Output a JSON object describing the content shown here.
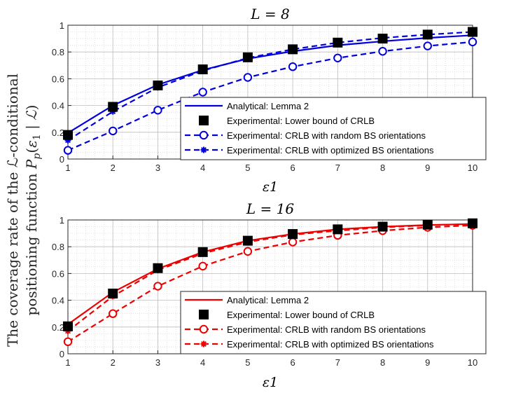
{
  "chart_data": [
    {
      "type": "line",
      "title": "L = 8",
      "xlabel": "ε1",
      "color": "#0000dd",
      "x": [
        1,
        2,
        3,
        4,
        5,
        6,
        7,
        8,
        9,
        10
      ],
      "xlim": [
        1,
        10
      ],
      "ylim": [
        0,
        1
      ],
      "xticks": [
        "1",
        "2",
        "3",
        "4",
        "5",
        "6",
        "7",
        "8",
        "9",
        "10"
      ],
      "yticks": [
        "0",
        "0.2",
        "0.4",
        "0.6",
        "0.8",
        "1"
      ],
      "grid": true,
      "legend_position": "bottom-right",
      "series": [
        {
          "name": "Analytical: Lemma 2",
          "style": "solid",
          "marker": "none",
          "values": [
            0.195,
            0.4,
            0.555,
            0.665,
            0.75,
            0.805,
            0.85,
            0.88,
            0.905,
            0.925
          ]
        },
        {
          "name": "Experimental: Lower bound of CRLB",
          "style": "none",
          "marker": "square",
          "values": [
            0.18,
            0.39,
            0.55,
            0.67,
            0.76,
            0.82,
            0.87,
            0.9,
            0.93,
            0.95
          ]
        },
        {
          "name": "Experimental: CRLB with random BS orientations",
          "style": "dashed",
          "marker": "circle",
          "values": [
            0.065,
            0.21,
            0.365,
            0.5,
            0.61,
            0.69,
            0.755,
            0.805,
            0.845,
            0.875
          ]
        },
        {
          "name": "Experimental: CRLB with optimized BS orientations",
          "style": "dashed",
          "marker": "asterisk",
          "values": [
            0.14,
            0.355,
            0.535,
            0.66,
            0.755,
            0.82,
            0.87,
            0.905,
            0.93,
            0.95
          ]
        }
      ]
    },
    {
      "type": "line",
      "title": "L = 16",
      "xlabel": "ε1",
      "color": "#ee0000",
      "x": [
        1,
        2,
        3,
        4,
        5,
        6,
        7,
        8,
        9,
        10
      ],
      "xlim": [
        1,
        10
      ],
      "ylim": [
        0,
        1
      ],
      "xticks": [
        "1",
        "2",
        "3",
        "4",
        "5",
        "6",
        "7",
        "8",
        "9",
        "10"
      ],
      "yticks": [
        "0",
        "0.2",
        "0.4",
        "0.6",
        "0.8",
        "1"
      ],
      "grid": true,
      "legend_position": "bottom-right",
      "series": [
        {
          "name": "Analytical: Lemma 2",
          "style": "solid",
          "marker": "none",
          "values": [
            0.22,
            0.46,
            0.635,
            0.76,
            0.845,
            0.895,
            0.93,
            0.95,
            0.962,
            0.97
          ]
        },
        {
          "name": "Experimental: Lower bound of CRLB",
          "style": "none",
          "marker": "square",
          "values": [
            0.205,
            0.45,
            0.64,
            0.76,
            0.845,
            0.895,
            0.93,
            0.95,
            0.965,
            0.975
          ]
        },
        {
          "name": "Experimental: CRLB with random BS orientations",
          "style": "dashed",
          "marker": "circle",
          "values": [
            0.09,
            0.3,
            0.505,
            0.655,
            0.765,
            0.835,
            0.885,
            0.92,
            0.945,
            0.96
          ]
        },
        {
          "name": "Experimental: CRLB with optimized BS orientations",
          "style": "dashed",
          "marker": "asterisk",
          "values": [
            0.17,
            0.43,
            0.625,
            0.75,
            0.835,
            0.89,
            0.92,
            0.945,
            0.96,
            0.97
          ]
        }
      ]
    }
  ],
  "ylabel_line1": "The coverage rate of the ℒ-conditional",
  "ylabel_line2": "positioning function P_p(ε1 | ℒ)"
}
